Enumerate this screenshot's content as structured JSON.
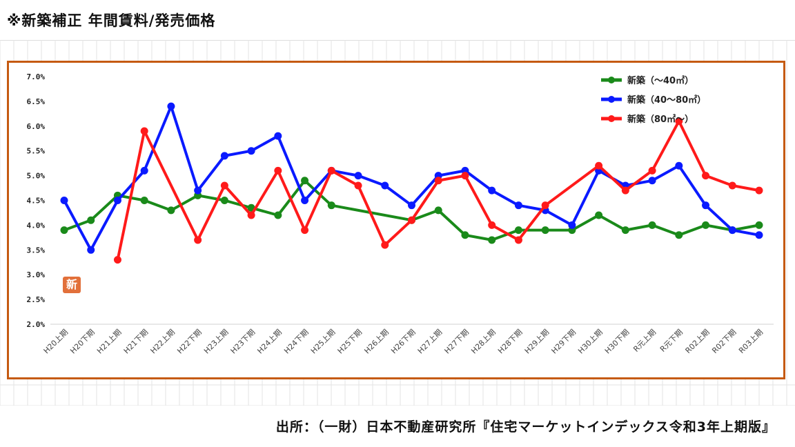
{
  "header": {
    "title": "※新築補正 年間賃料/発売価格"
  },
  "footer": {
    "source": "出所：（一財）日本不動産研究所『住宅マーケットインデックス令和3年上期版』"
  },
  "stamp": {
    "char": "新"
  },
  "chart_data": {
    "type": "line",
    "title": "",
    "xlabel": "",
    "ylabel": "",
    "ylim": [
      2.0,
      7.0
    ],
    "yticks": [
      "2.0%",
      "2.5%",
      "3.0%",
      "3.5%",
      "4.0%",
      "4.5%",
      "5.0%",
      "5.5%",
      "6.0%",
      "6.5%",
      "7.0%"
    ],
    "grid": false,
    "legend_position": "top-right",
    "categories": [
      "H20上期",
      "H20下期",
      "H21上期",
      "H21下期",
      "H22上期",
      "H22下期",
      "H23上期",
      "H23下期",
      "H24上期",
      "H24下期",
      "H25上期",
      "H25下期",
      "H26上期",
      "H26下期",
      "H27上期",
      "H27下期",
      "H28上期",
      "H28下期",
      "H29上期",
      "H29下期",
      "H30上期",
      "H30下期",
      "R元上期",
      "R元下期",
      "R02上期",
      "R02下期",
      "R03上期"
    ],
    "series": [
      {
        "name": "新築（～40㎡）",
        "color": "#1a8a1a",
        "values": [
          3.9,
          4.1,
          4.6,
          4.5,
          4.3,
          4.6,
          4.5,
          4.35,
          4.2,
          4.9,
          4.4,
          null,
          null,
          4.1,
          4.3,
          3.8,
          3.7,
          3.9,
          3.9,
          3.9,
          4.2,
          3.9,
          4.0,
          3.8,
          4.0,
          3.9,
          4.0
        ]
      },
      {
        "name": "新築（40～80㎡）",
        "color": "#0a1aff",
        "values": [
          4.5,
          3.5,
          4.5,
          5.1,
          6.4,
          4.7,
          5.4,
          5.5,
          5.8,
          4.5,
          5.1,
          5.0,
          4.8,
          4.4,
          5.0,
          5.1,
          4.7,
          4.4,
          4.3,
          4.0,
          5.1,
          4.8,
          4.9,
          5.2,
          4.4,
          3.9,
          3.8
        ]
      },
      {
        "name": "新築（80㎡～）",
        "color": "#ff1a1a",
        "values": [
          null,
          null,
          3.3,
          5.9,
          null,
          3.7,
          4.8,
          4.2,
          5.1,
          3.9,
          5.1,
          4.8,
          3.6,
          4.1,
          4.9,
          5.0,
          4.0,
          3.7,
          4.4,
          null,
          5.2,
          4.7,
          5.1,
          6.1,
          5.0,
          4.8,
          4.7
        ]
      }
    ]
  }
}
